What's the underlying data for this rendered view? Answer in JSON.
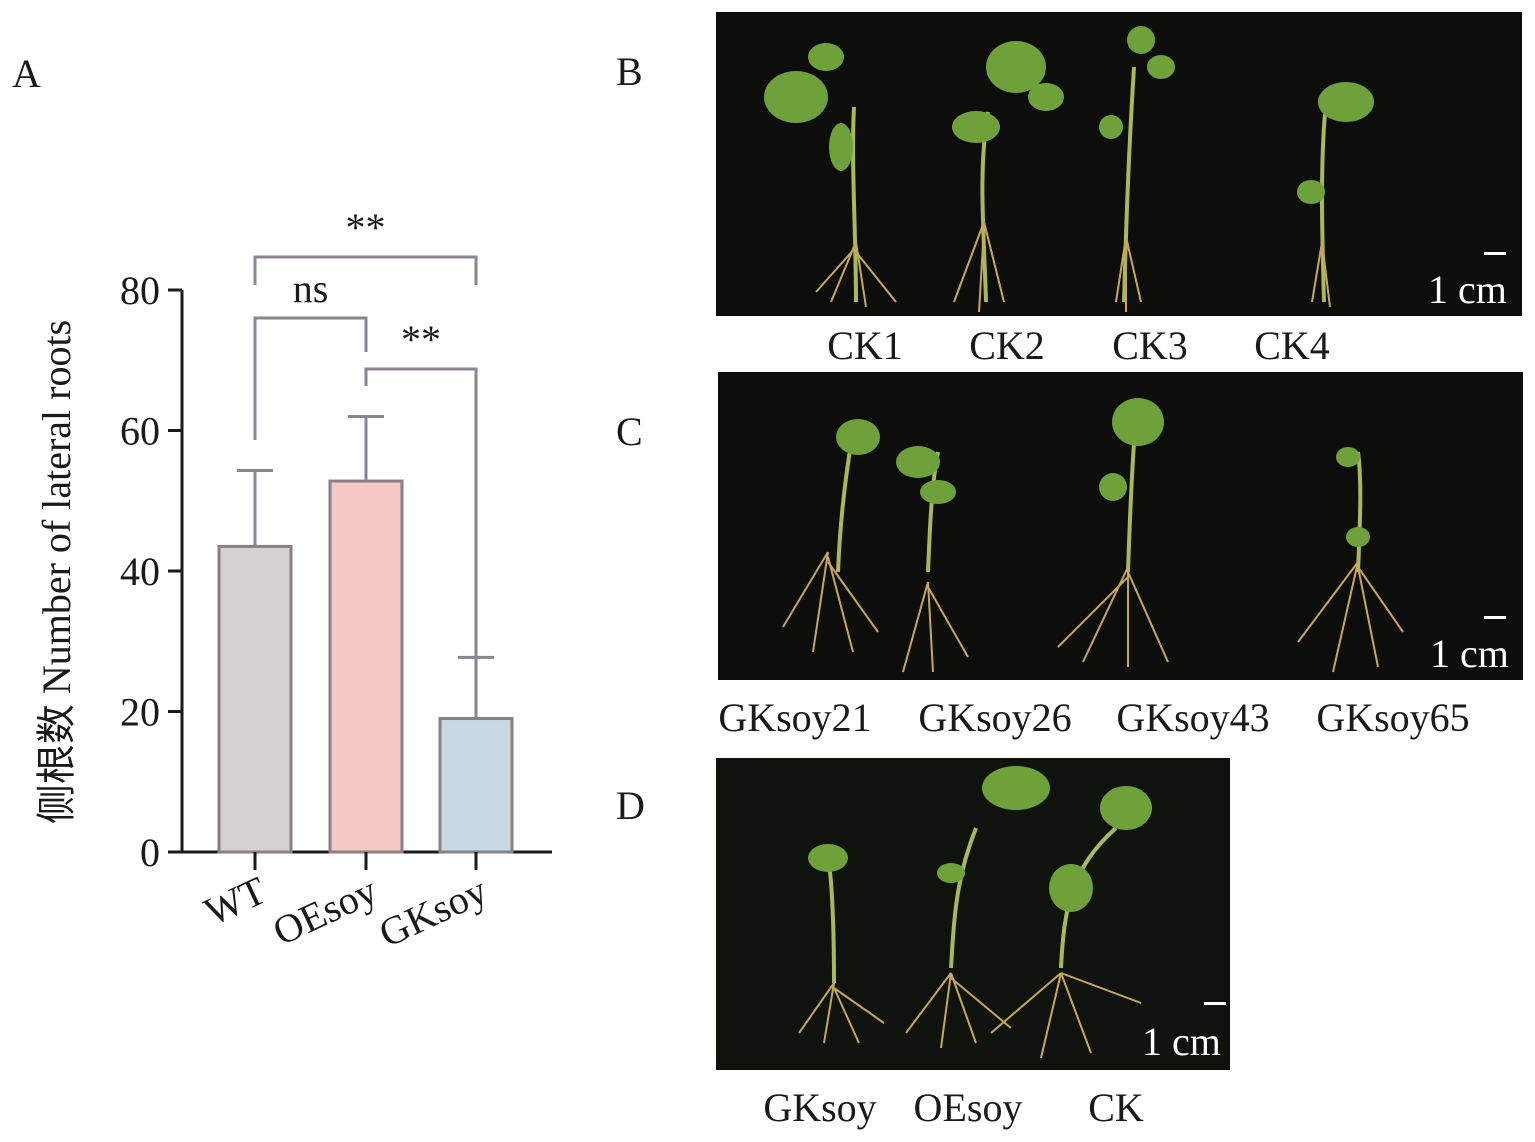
{
  "panels": {
    "a": "A",
    "b": "B",
    "c": "C",
    "d": "D"
  },
  "chart_data": {
    "type": "bar",
    "categories": [
      "WT",
      "OEsoy",
      "GKsoy"
    ],
    "values": [
      43.5,
      52.8,
      19.0
    ],
    "errors": [
      10.8,
      9.2,
      8.7
    ],
    "ylabel": "侧根数 Number of lateral roots",
    "xlabel": "",
    "ylim": [
      0,
      80
    ],
    "yticks": [
      0,
      20,
      40,
      60,
      80
    ],
    "bar_colors": [
      "#d6d2cf",
      "#f4c9c6",
      "#c9d9e3"
    ],
    "bar_edge_color": "#8a7f86",
    "significance": [
      {
        "from": "WT",
        "to": "OEsoy",
        "label": "ns"
      },
      {
        "from": "WT",
        "to": "GKsoy",
        "label": "**"
      },
      {
        "from": "OEsoy",
        "to": "GKsoy",
        "label": "**"
      }
    ],
    "grid": false
  },
  "photos": {
    "b": {
      "captions": [
        "CK1",
        "CK2",
        "CK3",
        "CK4"
      ],
      "scale": "1 cm"
    },
    "c": {
      "captions": [
        "GKsoy21",
        "GKsoy26",
        "GKsoy43",
        "GKsoy65"
      ],
      "scale": "1 cm"
    },
    "d": {
      "captions": [
        "GKsoy",
        "OEsoy",
        "CK"
      ],
      "scale": "1 cm"
    }
  }
}
